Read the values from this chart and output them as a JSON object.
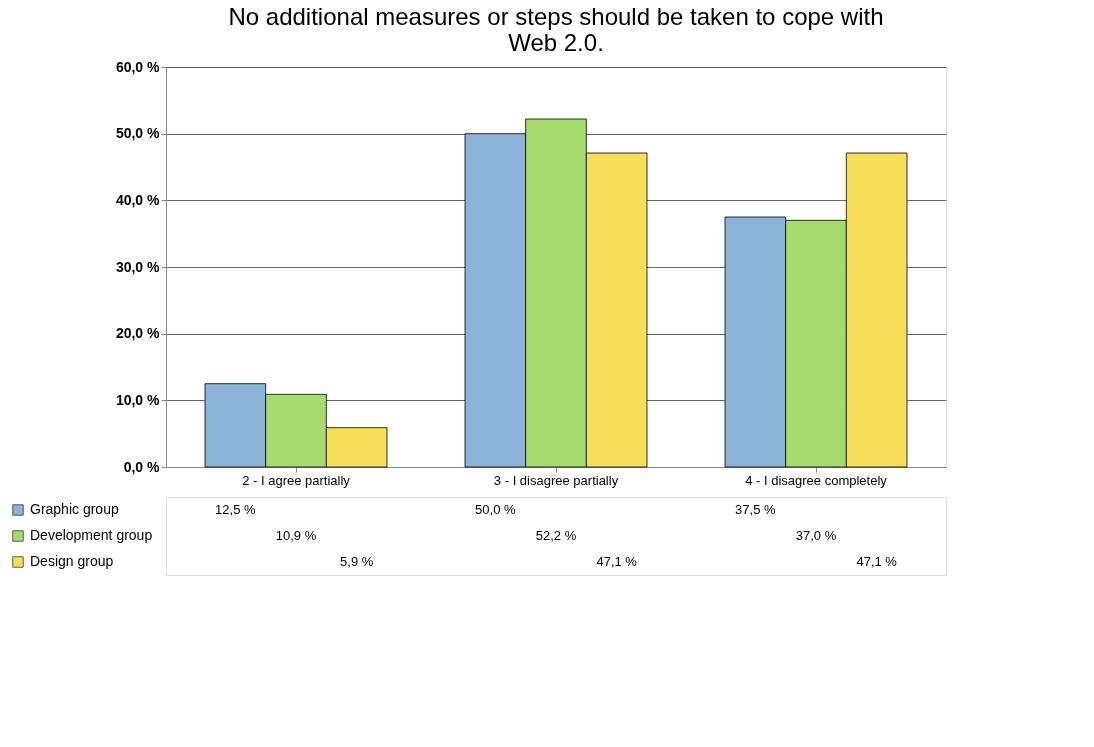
{
  "chart_data": {
    "type": "bar",
    "title": "No additional measures or steps should be taken to cope with Web 2.0.",
    "categories": [
      "2 - I agree partially",
      "3 - I disagree partially",
      "4 - I disagree completely"
    ],
    "series": [
      {
        "name": "Graphic group",
        "color": "#8db3d9",
        "values": [
          12.5,
          50.0,
          37.5
        ],
        "value_labels": [
          "12,5 %",
          "50,0 %",
          "37,5 %"
        ]
      },
      {
        "name": "Development group",
        "color": "#a6dc6e",
        "values": [
          10.9,
          52.2,
          37.0
        ],
        "value_labels": [
          "10,9 %",
          "52,2 %",
          "37,0 %"
        ]
      },
      {
        "name": "Design group",
        "color": "#f7de5a",
        "values": [
          5.9,
          47.1,
          47.1
        ],
        "value_labels": [
          "5,9 %",
          "47,1 %",
          "47,1 %"
        ]
      }
    ],
    "ylim": [
      0,
      60
    ],
    "yticks": [
      {
        "value": 0,
        "label": "0,0 %"
      },
      {
        "value": 10,
        "label": "10,0 %"
      },
      {
        "value": 20,
        "label": "20,0 %"
      },
      {
        "value": 30,
        "label": "30,0 %"
      },
      {
        "value": 40,
        "label": "40,0 %"
      },
      {
        "value": 50,
        "label": "50,0 %"
      },
      {
        "value": 60,
        "label": "60,0 %"
      }
    ],
    "grid": "y",
    "legend": "bottom left"
  }
}
